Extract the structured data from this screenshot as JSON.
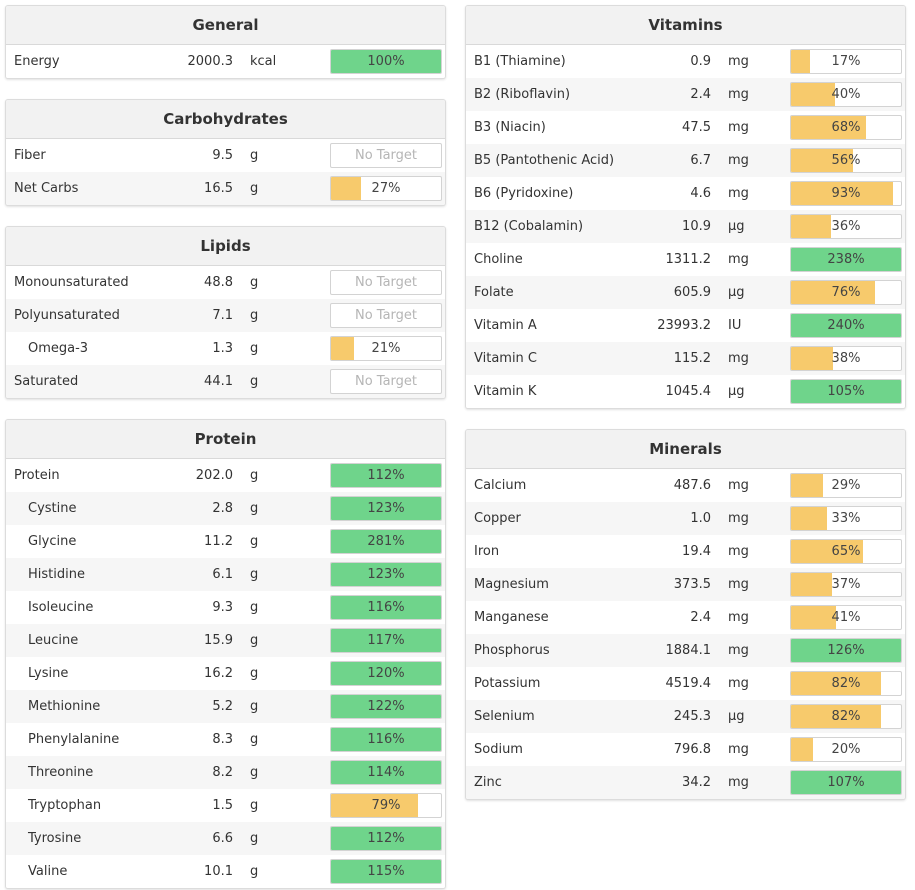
{
  "colors": {
    "green": "#6fd48b",
    "yellow": "#f7ca6c"
  },
  "left": [
    {
      "title": "General",
      "rows": [
        {
          "name": "Energy",
          "amount": "2000.3",
          "unit": "kcal",
          "pct": 100,
          "label": "100%"
        }
      ]
    },
    {
      "title": "Carbohydrates",
      "rows": [
        {
          "name": "Fiber",
          "amount": "9.5",
          "unit": "g",
          "pct": null,
          "label": "No Target"
        },
        {
          "name": "Net Carbs",
          "amount": "16.5",
          "unit": "g",
          "pct": 27,
          "label": "27%"
        }
      ]
    },
    {
      "title": "Lipids",
      "rows": [
        {
          "name": "Monounsaturated",
          "amount": "48.8",
          "unit": "g",
          "pct": null,
          "label": "No Target"
        },
        {
          "name": "Polyunsaturated",
          "amount": "7.1",
          "unit": "g",
          "pct": null,
          "label": "No Target"
        },
        {
          "name": "Omega-3",
          "amount": "1.3",
          "unit": "g",
          "pct": 21,
          "label": "21%",
          "indent": true
        },
        {
          "name": "Saturated",
          "amount": "44.1",
          "unit": "g",
          "pct": null,
          "label": "No Target"
        }
      ]
    },
    {
      "title": "Protein",
      "rows": [
        {
          "name": "Protein",
          "amount": "202.0",
          "unit": "g",
          "pct": 112,
          "label": "112%"
        },
        {
          "name": "Cystine",
          "amount": "2.8",
          "unit": "g",
          "pct": 123,
          "label": "123%",
          "indent": true
        },
        {
          "name": "Glycine",
          "amount": "11.2",
          "unit": "g",
          "pct": 281,
          "label": "281%",
          "indent": true
        },
        {
          "name": "Histidine",
          "amount": "6.1",
          "unit": "g",
          "pct": 123,
          "label": "123%",
          "indent": true
        },
        {
          "name": "Isoleucine",
          "amount": "9.3",
          "unit": "g",
          "pct": 116,
          "label": "116%",
          "indent": true
        },
        {
          "name": "Leucine",
          "amount": "15.9",
          "unit": "g",
          "pct": 117,
          "label": "117%",
          "indent": true
        },
        {
          "name": "Lysine",
          "amount": "16.2",
          "unit": "g",
          "pct": 120,
          "label": "120%",
          "indent": true
        },
        {
          "name": "Methionine",
          "amount": "5.2",
          "unit": "g",
          "pct": 122,
          "label": "122%",
          "indent": true
        },
        {
          "name": "Phenylalanine",
          "amount": "8.3",
          "unit": "g",
          "pct": 116,
          "label": "116%",
          "indent": true
        },
        {
          "name": "Threonine",
          "amount": "8.2",
          "unit": "g",
          "pct": 114,
          "label": "114%",
          "indent": true
        },
        {
          "name": "Tryptophan",
          "amount": "1.5",
          "unit": "g",
          "pct": 79,
          "label": "79%",
          "indent": true
        },
        {
          "name": "Tyrosine",
          "amount": "6.6",
          "unit": "g",
          "pct": 112,
          "label": "112%",
          "indent": true
        },
        {
          "name": "Valine",
          "amount": "10.1",
          "unit": "g",
          "pct": 115,
          "label": "115%",
          "indent": true
        }
      ]
    }
  ],
  "right": [
    {
      "title": "Vitamins",
      "rows": [
        {
          "name": "B1 (Thiamine)",
          "amount": "0.9",
          "unit": "mg",
          "pct": 17,
          "label": "17%"
        },
        {
          "name": "B2 (Riboflavin)",
          "amount": "2.4",
          "unit": "mg",
          "pct": 40,
          "label": "40%"
        },
        {
          "name": "B3 (Niacin)",
          "amount": "47.5",
          "unit": "mg",
          "pct": 68,
          "label": "68%"
        },
        {
          "name": "B5 (Pantothenic Acid)",
          "amount": "6.7",
          "unit": "mg",
          "pct": 56,
          "label": "56%"
        },
        {
          "name": "B6 (Pyridoxine)",
          "amount": "4.6",
          "unit": "mg",
          "pct": 93,
          "label": "93%"
        },
        {
          "name": "B12 (Cobalamin)",
          "amount": "10.9",
          "unit": "µg",
          "pct": 36,
          "label": "36%"
        },
        {
          "name": "Choline",
          "amount": "1311.2",
          "unit": "mg",
          "pct": 238,
          "label": "238%"
        },
        {
          "name": "Folate",
          "amount": "605.9",
          "unit": "µg",
          "pct": 76,
          "label": "76%"
        },
        {
          "name": "Vitamin A",
          "amount": "23993.2",
          "unit": "IU",
          "pct": 240,
          "label": "240%"
        },
        {
          "name": "Vitamin C",
          "amount": "115.2",
          "unit": "mg",
          "pct": 38,
          "label": "38%"
        },
        {
          "name": "Vitamin K",
          "amount": "1045.4",
          "unit": "µg",
          "pct": 105,
          "label": "105%"
        }
      ]
    },
    {
      "title": "Minerals",
      "rows": [
        {
          "name": "Calcium",
          "amount": "487.6",
          "unit": "mg",
          "pct": 29,
          "label": "29%"
        },
        {
          "name": "Copper",
          "amount": "1.0",
          "unit": "mg",
          "pct": 33,
          "label": "33%"
        },
        {
          "name": "Iron",
          "amount": "19.4",
          "unit": "mg",
          "pct": 65,
          "label": "65%"
        },
        {
          "name": "Magnesium",
          "amount": "373.5",
          "unit": "mg",
          "pct": 37,
          "label": "37%"
        },
        {
          "name": "Manganese",
          "amount": "2.4",
          "unit": "mg",
          "pct": 41,
          "label": "41%"
        },
        {
          "name": "Phosphorus",
          "amount": "1884.1",
          "unit": "mg",
          "pct": 126,
          "label": "126%"
        },
        {
          "name": "Potassium",
          "amount": "4519.4",
          "unit": "mg",
          "pct": 82,
          "label": "82%"
        },
        {
          "name": "Selenium",
          "amount": "245.3",
          "unit": "µg",
          "pct": 82,
          "label": "82%"
        },
        {
          "name": "Sodium",
          "amount": "796.8",
          "unit": "mg",
          "pct": 20,
          "label": "20%"
        },
        {
          "name": "Zinc",
          "amount": "34.2",
          "unit": "mg",
          "pct": 107,
          "label": "107%"
        }
      ]
    }
  ]
}
